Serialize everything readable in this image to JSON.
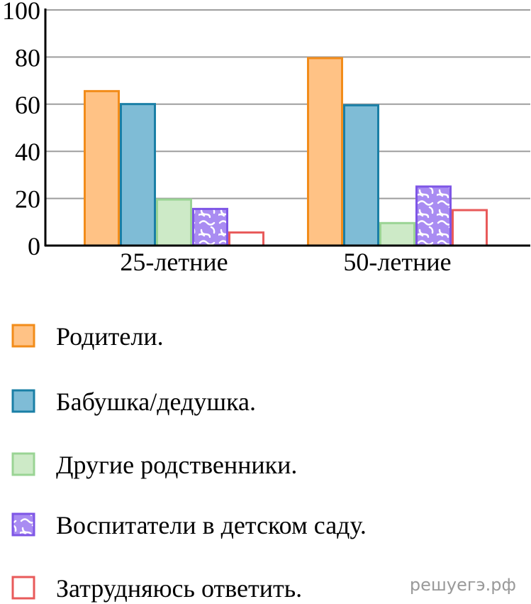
{
  "chart_data": {
    "type": "bar",
    "categories": [
      "25-летние",
      "50-летние"
    ],
    "series": [
      {
        "name": "Родители.",
        "values": [
          66,
          80
        ],
        "fill": "#ffc285",
        "stroke": "#f28c1a",
        "pattern": "none"
      },
      {
        "name": "Бабушка/дедушка.",
        "values": [
          60.5,
          60
        ],
        "fill": "#7fbcd6",
        "stroke": "#1a7fa6",
        "pattern": "none"
      },
      {
        "name": "Другие родственники.",
        "values": [
          20,
          10
        ],
        "fill": "#cdeac7",
        "stroke": "#9ad494",
        "pattern": "none"
      },
      {
        "name": "Воспитатели в детском саду.",
        "values": [
          16,
          25.5
        ],
        "fill": "#a98cf2",
        "stroke": "#7e56e6",
        "pattern": "squiggle"
      },
      {
        "name": "Затрудняюсь ответить.",
        "values": [
          6,
          15.5
        ],
        "fill": "#ffffff",
        "stroke": "#e85a5a",
        "pattern": "none"
      }
    ],
    "ylim": [
      0,
      100
    ],
    "yticks": [
      0,
      20,
      40,
      60,
      80,
      100
    ],
    "grid": true,
    "legend_position": "bottom",
    "title": "",
    "xlabel": "",
    "ylabel": ""
  },
  "watermark": "решуегэ.рф",
  "colors": {
    "grid": "#9e9e9e",
    "axis": "#000000",
    "squiggle_stroke": "#ffffff"
  }
}
